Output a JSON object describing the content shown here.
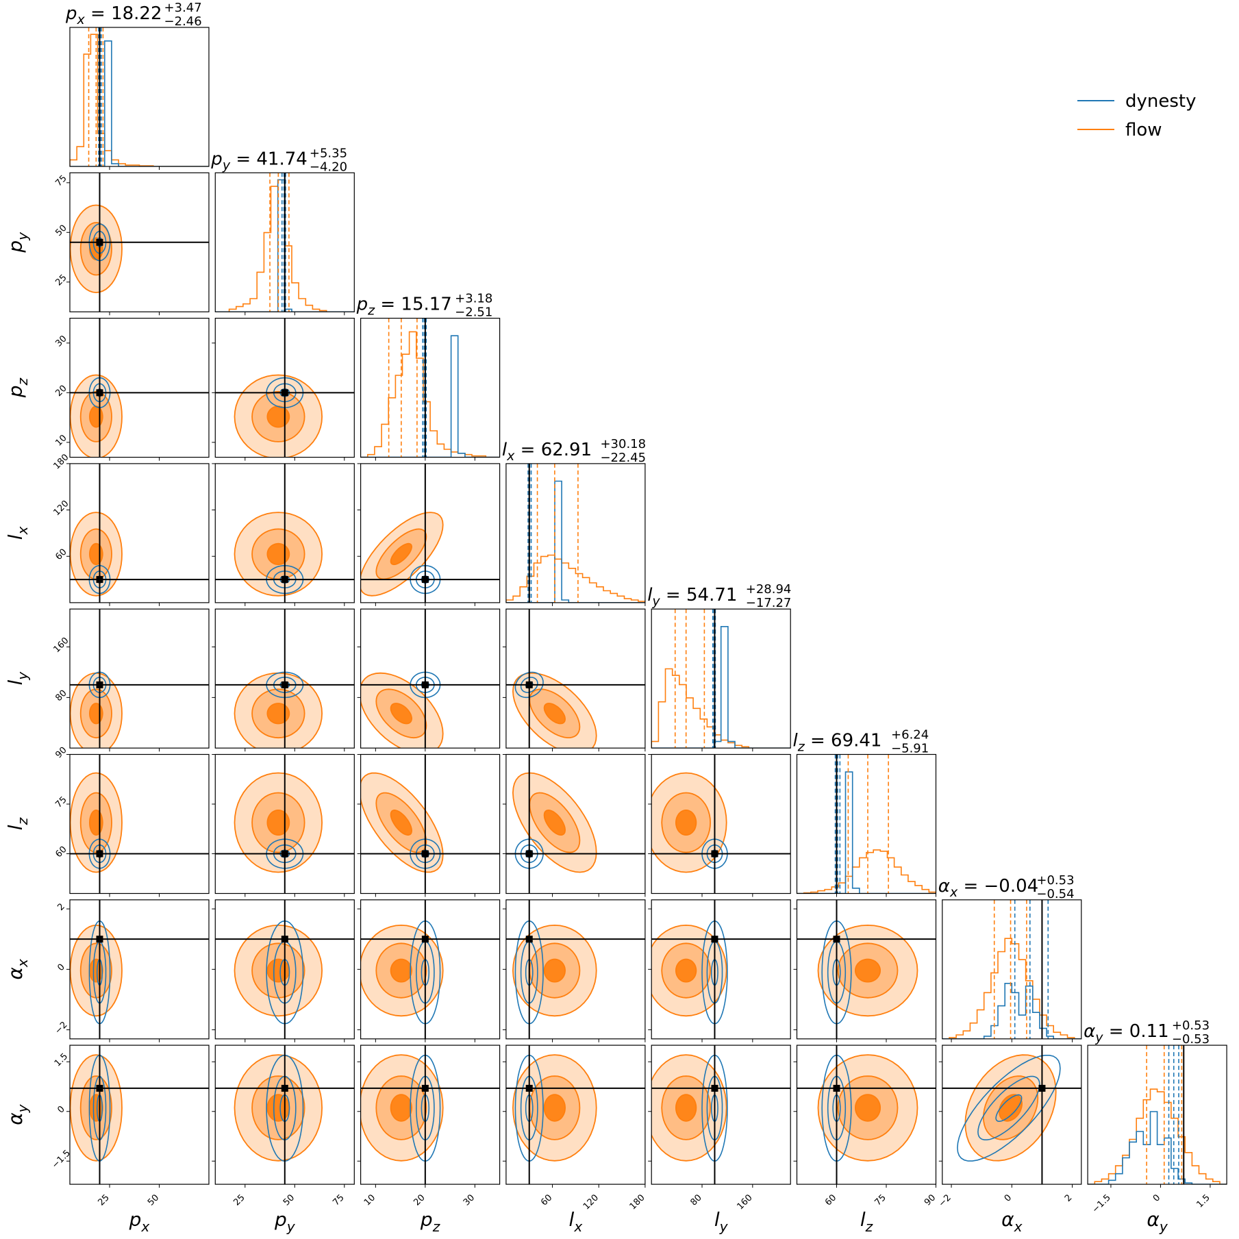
{
  "chart_data": {
    "type": "corner",
    "legend": {
      "placement": "top-right",
      "entries": [
        {
          "label": "dynesty",
          "color": "#1f77b4"
        },
        {
          "label": "flow",
          "color": "#ff7f0e"
        }
      ]
    },
    "colors": {
      "dynesty": "#1f77b4",
      "flow": "#ff7f0e",
      "truth": "#000000"
    },
    "parameters": [
      {
        "key": "px",
        "sym": "p",
        "sub": "x",
        "range": [
          5,
          75
        ],
        "ticks": [
          25,
          50
        ],
        "truth": 20,
        "title": {
          "value": "18.22",
          "plus": "+3.47",
          "minus": "−2.46"
        },
        "flow_q": [
          14.5,
          18.22,
          21.7
        ],
        "dyn_q": [
          19.5,
          20.2,
          20.8
        ]
      },
      {
        "key": "py",
        "sym": "p",
        "sub": "y",
        "range": [
          10,
          80
        ],
        "ticks": [
          25,
          50,
          75
        ],
        "truth": 45,
        "title": {
          "value": "41.74",
          "plus": "+5.35",
          "minus": "−4.20"
        },
        "flow_q": [
          37.5,
          41.74,
          47.1
        ],
        "dyn_q": [
          43.6,
          44.6,
          45.4
        ]
      },
      {
        "key": "pz",
        "sym": "p",
        "sub": "z",
        "range": [
          7,
          35
        ],
        "ticks": [
          10,
          20,
          30
        ],
        "truth": 20,
        "title": {
          "value": "15.17",
          "plus": "+3.18",
          "minus": "−2.51"
        },
        "flow_q": [
          12.66,
          15.17,
          18.35
        ],
        "dyn_q": [
          19.5,
          19.8,
          20.2
        ]
      },
      {
        "key": "lx",
        "sym": "l",
        "sub": "x",
        "range": [
          0,
          180
        ],
        "ticks": [
          60,
          120,
          180
        ],
        "truth": 30,
        "title": {
          "value": "62.91",
          "plus": "+30.18",
          "minus": "−22.45"
        },
        "flow_q": [
          40.5,
          62.91,
          93.1
        ],
        "dyn_q": [
          28.5,
          30.5,
          32.5
        ]
      },
      {
        "key": "ly",
        "sym": "l",
        "sub": "y",
        "range": [
          0,
          220
        ],
        "ticks": [
          80,
          160
        ],
        "truth": 100,
        "title": {
          "value": "54.71",
          "plus": "+28.94",
          "minus": "−17.27"
        },
        "flow_q": [
          37.44,
          54.71,
          83.65
        ],
        "dyn_q": [
          97,
          99,
          101
        ]
      },
      {
        "key": "lz",
        "sym": "l",
        "sub": "z",
        "range": [
          48,
          90
        ],
        "ticks": [
          60,
          75,
          90
        ],
        "truth": 60,
        "title": {
          "value": "69.41",
          "plus": "+6.24",
          "minus": "−5.91"
        },
        "flow_q": [
          63.5,
          69.41,
          75.65
        ],
        "dyn_q": [
          59.6,
          60.3,
          61
        ]
      },
      {
        "key": "ax",
        "sym": "α",
        "sub": "x",
        "range": [
          -2.3,
          2.3
        ],
        "ticks": [
          -2,
          0,
          2
        ],
        "truth": 1.0,
        "title": {
          "value": "−0.04",
          "plus": "+0.53",
          "minus": "−0.54"
        },
        "flow_q": [
          -0.58,
          -0.04,
          0.49
        ],
        "dyn_q": [
          0.1,
          0.6,
          1.2
        ]
      },
      {
        "key": "ay",
        "sym": "α",
        "sub": "y",
        "range": [
          -2.2,
          2.0
        ],
        "ticks": [
          -1.5,
          0.0,
          1.5
        ],
        "truth": 0.7,
        "title": {
          "value": "0.11",
          "plus": "+0.53",
          "minus": "−0.53"
        },
        "flow_q": [
          -0.42,
          0.11,
          0.64
        ],
        "dyn_q": [
          0.25,
          0.4,
          0.55
        ]
      }
    ],
    "histograms": {
      "flow": [
        [
          0.05,
          0.15,
          0.85,
          1.0,
          0.25,
          0.12,
          0.05,
          0.02,
          0.01,
          0.01,
          0.005,
          0.005,
          0,
          0,
          0,
          0,
          0,
          0,
          0,
          0
        ],
        [
          0.0,
          0.0,
          0.02,
          0.04,
          0.06,
          0.1,
          0.3,
          0.6,
          0.95,
          1.0,
          0.5,
          0.22,
          0.1,
          0.05,
          0.02,
          0.01,
          0,
          0,
          0,
          0
        ],
        [
          0.0,
          0.02,
          0.08,
          0.25,
          0.45,
          0.62,
          0.78,
          0.95,
          0.75,
          0.42,
          0.2,
          0.1,
          0.06,
          0.04,
          0.03,
          0.02,
          0.01,
          0.01,
          0,
          0
        ],
        [
          0.02,
          0.05,
          0.12,
          0.2,
          0.3,
          0.35,
          0.36,
          0.33,
          0.3,
          0.26,
          0.22,
          0.19,
          0.15,
          0.12,
          0.09,
          0.07,
          0.05,
          0.03,
          0.02,
          0.01
        ],
        [
          0.05,
          0.35,
          0.6,
          0.55,
          0.48,
          0.38,
          0.3,
          0.22,
          0.16,
          0.1,
          0.06,
          0.04,
          0.02,
          0.01,
          0,
          0,
          0,
          0,
          0,
          0
        ],
        [
          0,
          0.005,
          0.01,
          0.02,
          0.03,
          0.05,
          0.08,
          0.13,
          0.2,
          0.27,
          0.31,
          0.33,
          0.32,
          0.27,
          0.2,
          0.14,
          0.09,
          0.06,
          0.03,
          0.01
        ],
        [
          0,
          0.01,
          0.03,
          0.06,
          0.12,
          0.22,
          0.35,
          0.5,
          0.66,
          0.76,
          0.72,
          0.6,
          0.44,
          0.3,
          0.18,
          0.1,
          0.05,
          0.03,
          0.01,
          0
        ],
        [
          0,
          0.02,
          0.04,
          0.08,
          0.14,
          0.22,
          0.34,
          0.5,
          0.64,
          0.72,
          0.7,
          0.62,
          0.5,
          0.36,
          0.24,
          0.14,
          0.08,
          0.04,
          0.02,
          0
        ]
      ],
      "dynesty": [
        [
          0,
          0,
          0,
          0,
          0,
          0.95,
          0.02,
          0,
          0,
          0,
          0,
          0,
          0,
          0,
          0,
          0,
          0,
          0,
          0,
          0
        ],
        [
          0,
          0,
          0,
          0,
          0,
          0,
          0,
          0,
          0,
          1.0,
          0.02,
          0,
          0,
          0,
          0,
          0,
          0,
          0,
          0,
          0
        ],
        [
          0,
          0,
          0,
          0,
          0,
          0,
          0,
          0,
          0,
          0,
          0,
          0,
          0,
          0.92,
          0.03,
          0,
          0,
          0,
          0,
          0
        ],
        [
          0,
          0,
          0,
          0,
          0,
          0,
          0,
          0.92,
          0.02,
          0,
          0,
          0,
          0,
          0,
          0,
          0,
          0,
          0,
          0,
          0
        ],
        [
          0,
          0,
          0,
          0,
          0,
          0,
          0,
          0,
          0,
          0.05,
          0.92,
          0.05,
          0,
          0,
          0,
          0,
          0,
          0,
          0,
          0
        ],
        [
          0,
          0,
          0,
          0,
          0,
          0,
          0,
          0.92,
          0.04,
          0,
          0,
          0,
          0,
          0,
          0,
          0,
          0,
          0,
          0,
          0
        ],
        [
          0,
          0,
          0,
          0,
          0,
          0,
          0.02,
          0.1,
          0.25,
          0.42,
          0.35,
          0.18,
          0.4,
          0.2,
          0.08,
          0.02,
          0,
          0,
          0,
          0
        ],
        [
          0,
          0,
          0,
          0.03,
          0.08,
          0.2,
          0.32,
          0.4,
          0.3,
          0.55,
          0.3,
          0.35,
          0.12,
          0.04,
          0.01,
          0,
          0,
          0,
          0,
          0
        ]
      ]
    },
    "contours": {
      "flow_mean": [
        18.22,
        41.74,
        15.17,
        62.91,
        54.71,
        69.41,
        -0.04,
        0.11
      ],
      "flow_sd": [
        6.5,
        11.0,
        4.2,
        27.0,
        32.0,
        7.5,
        0.75,
        0.8
      ],
      "dynesty_mean": [
        20,
        45,
        20,
        30,
        100,
        60,
        -0.1,
        0.1
      ],
      "dynesty_sd": [
        2.6,
        4.6,
        1.5,
        9.0,
        10.0,
        2.2,
        0.85,
        0.8
      ],
      "levels": [
        0.5,
        1.2,
        2.0
      ],
      "correlations": [
        {
          "pair": [
            2,
            3
          ],
          "flow": 0.7
        },
        {
          "pair": [
            3,
            4
          ],
          "flow": -0.55,
          "dynesty": 0.2
        },
        {
          "pair": [
            2,
            5
          ],
          "flow": -0.65
        },
        {
          "pair": [
            3,
            5
          ],
          "flow": -0.6
        },
        {
          "pair": [
            2,
            4
          ],
          "flow": -0.5
        },
        {
          "pair": [
            6,
            7
          ],
          "flow": 0.3,
          "dynesty": 0.75
        }
      ]
    }
  }
}
